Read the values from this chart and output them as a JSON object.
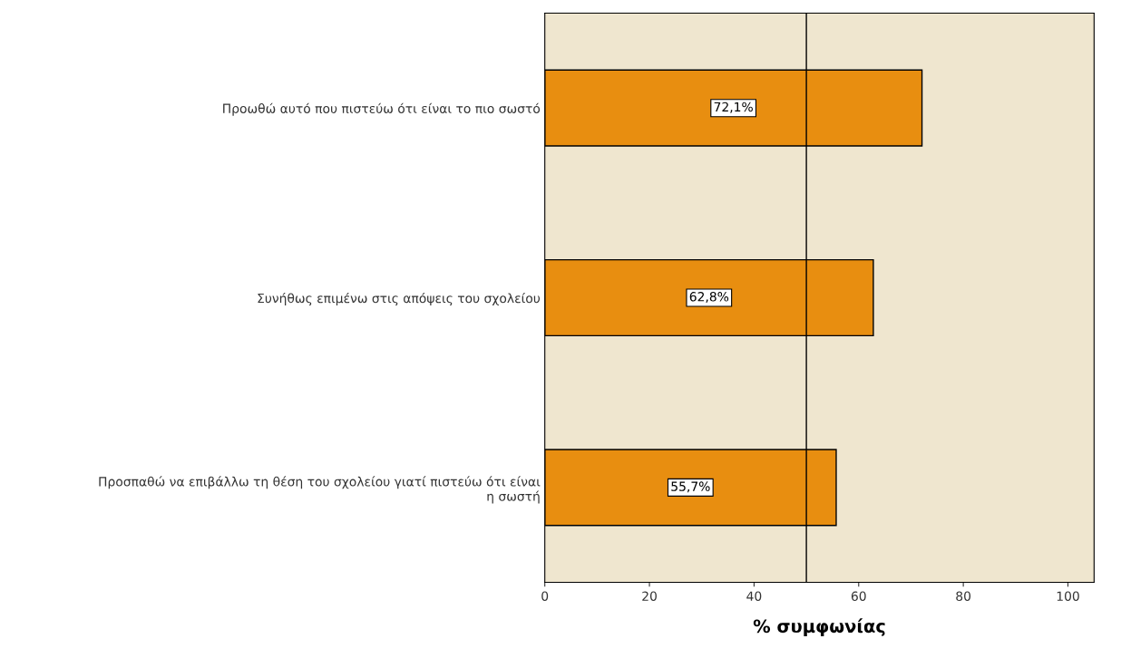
{
  "chart_data": {
    "type": "bar",
    "orientation": "horizontal",
    "xlabel": "% συμφωνίας",
    "categories": [
      "Προωθώ αυτό που πιστεύω ότι είναι το πιο σωστό",
      "Συνήθως επιμένω στις απόψεις του σχολείου",
      "Προσπαθώ να επιβάλλω τη θέση του σχολείου γιατί πιστεύω ότι είναι\nη σωστή"
    ],
    "values": [
      72.1,
      62.8,
      55.7
    ],
    "value_labels": [
      "72,1%",
      "62,8%",
      "55,7%"
    ],
    "color": "#e88e10",
    "xlim": [
      0,
      105
    ],
    "xticks": [
      0,
      20,
      40,
      60,
      80,
      100
    ],
    "grid": false,
    "ref_lines": [
      {
        "axis": "x",
        "value": 50,
        "color": "#000000"
      }
    ]
  }
}
